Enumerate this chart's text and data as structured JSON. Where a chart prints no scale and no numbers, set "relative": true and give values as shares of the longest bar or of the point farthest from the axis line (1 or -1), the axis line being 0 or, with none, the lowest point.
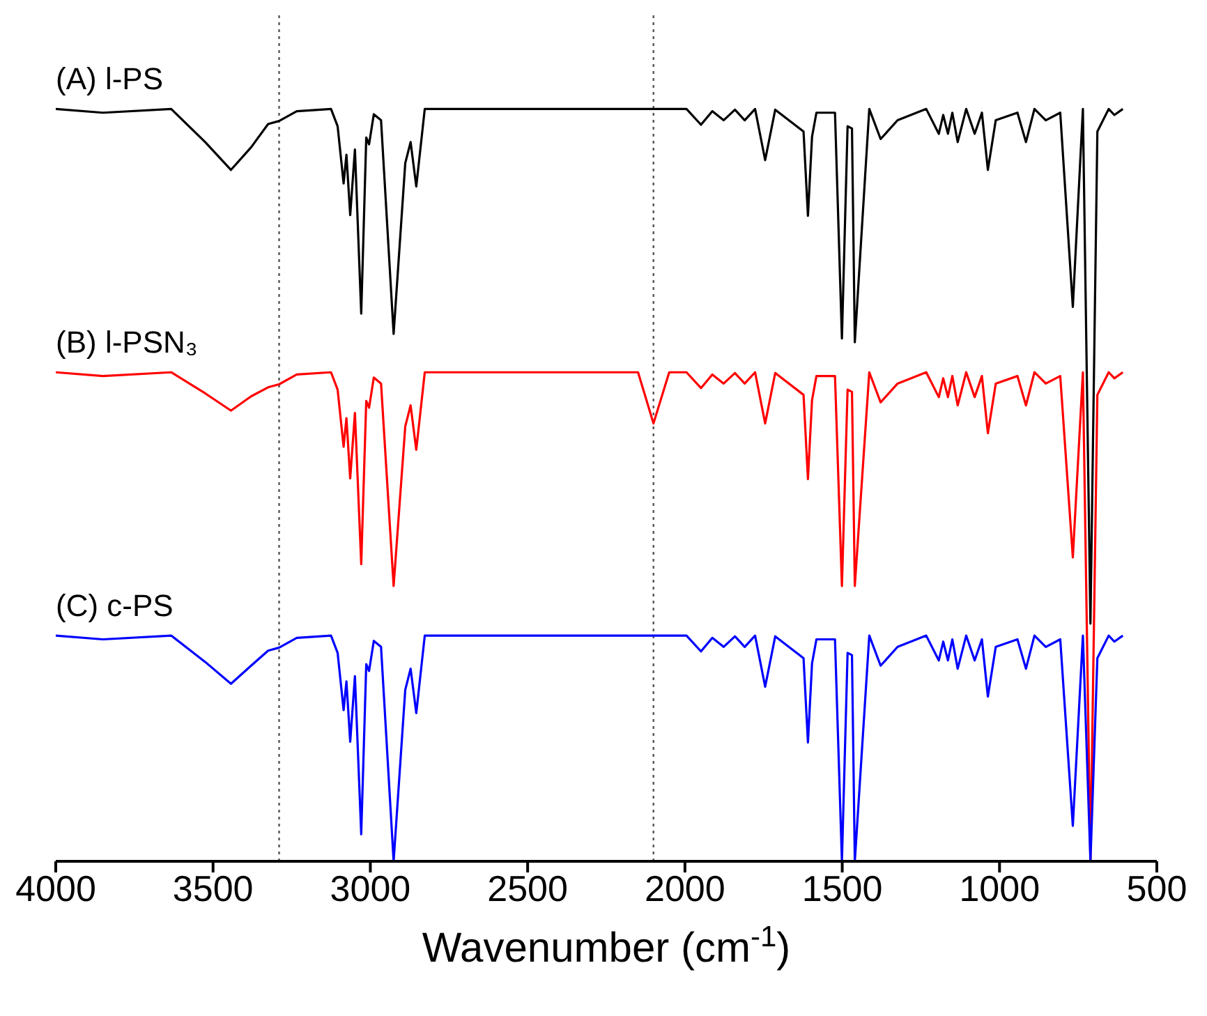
{
  "chart_data": {
    "type": "line",
    "relative": true,
    "xlabel": "Wavenumber (cm$^{-1}$)",
    "xlim": [
      4000,
      500
    ],
    "xticks": [
      4000,
      3500,
      3000,
      2500,
      2000,
      1500,
      1000,
      500
    ],
    "x": [
      4000,
      3850,
      3633,
      3525,
      3443,
      3379,
      3325,
      3290,
      3234,
      3125,
      3104,
      3085,
      3076,
      3064,
      3049,
      3029,
      3013,
      3004,
      2989,
      2966,
      2926,
      2889,
      2872,
      2854,
      2827,
      2149,
      2100,
      2050,
      1995,
      1949,
      1913,
      1877,
      1841,
      1810,
      1777,
      1745,
      1713,
      1623,
      1609,
      1596,
      1582,
      1523,
      1501,
      1483,
      1469,
      1460,
      1414,
      1378,
      1324,
      1233,
      1193,
      1179,
      1164,
      1150,
      1133,
      1106,
      1079,
      1056,
      1037,
      1012,
      943,
      916,
      889,
      853,
      807,
      767,
      735,
      711,
      689,
      653,
      635,
      608
    ],
    "series": [
      {
        "name": "(A) l-PS",
        "color": "#000000",
        "values": [
          1,
          0.995,
          1,
          0.956,
          0.919,
          0.949,
          0.98,
          0.984,
          0.997,
          1,
          0.977,
          0.901,
          0.939,
          0.859,
          0.946,
          0.728,
          0.962,
          0.953,
          0.993,
          0.985,
          0.701,
          0.928,
          0.956,
          0.897,
          1,
          1,
          1,
          1,
          1,
          0.979,
          0.997,
          0.985,
          0.999,
          0.985,
          1,
          0.932,
          0.999,
          0.97,
          0.858,
          0.963,
          0.995,
          0.995,
          0.695,
          0.977,
          0.974,
          0.69,
          1,
          0.96,
          0.985,
          1,
          0.967,
          0.992,
          0.967,
          0.995,
          0.956,
          1,
          0.967,
          0.995,
          0.919,
          0.985,
          0.995,
          0.956,
          1,
          0.985,
          0.995,
          0.737,
          1,
          0.316,
          0.97,
          1,
          0.992,
          1
        ]
      },
      {
        "name": "(B) l-PSN₃",
        "color": "#ff0000",
        "values": [
          0.65,
          0.645,
          0.65,
          0.622,
          0.599,
          0.618,
          0.63,
          0.634,
          0.647,
          0.65,
          0.627,
          0.551,
          0.589,
          0.509,
          0.596,
          0.395,
          0.612,
          0.603,
          0.643,
          0.635,
          0.366,
          0.578,
          0.606,
          0.547,
          0.65,
          0.65,
          0.582,
          0.65,
          0.65,
          0.629,
          0.647,
          0.635,
          0.649,
          0.635,
          0.65,
          0.582,
          0.649,
          0.62,
          0.508,
          0.613,
          0.645,
          0.645,
          0.366,
          0.627,
          0.624,
          0.366,
          0.65,
          0.61,
          0.635,
          0.65,
          0.617,
          0.642,
          0.617,
          0.645,
          0.606,
          0.65,
          0.617,
          0.645,
          0.569,
          0.635,
          0.645,
          0.606,
          0.65,
          0.635,
          0.645,
          0.404,
          0.65,
          0,
          0.62,
          0.65,
          0.642,
          0.65
        ]
      },
      {
        "name": "(C) c-PS",
        "color": "#0000ff",
        "values": [
          0.3,
          0.295,
          0.3,
          0.265,
          0.236,
          0.26,
          0.28,
          0.284,
          0.297,
          0.3,
          0.277,
          0.201,
          0.239,
          0.159,
          0.246,
          0.036,
          0.262,
          0.253,
          0.293,
          0.285,
          0,
          0.228,
          0.256,
          0.197,
          0.3,
          0.3,
          0.3,
          0.3,
          0.3,
          0.279,
          0.297,
          0.285,
          0.299,
          0.285,
          0.3,
          0.232,
          0.299,
          0.27,
          0.158,
          0.263,
          0.295,
          0.295,
          0,
          0.277,
          0.274,
          0,
          0.3,
          0.26,
          0.285,
          0.3,
          0.267,
          0.292,
          0.267,
          0.295,
          0.256,
          0.3,
          0.267,
          0.295,
          0.219,
          0.285,
          0.295,
          0.256,
          0.3,
          0.285,
          0.295,
          0.047,
          0.3,
          0,
          0.27,
          0.3,
          0.292,
          0.3
        ]
      }
    ],
    "ref_lines": [
      {
        "axis": "x",
        "value": 3290,
        "color": "#555555",
        "line_style": "dotted"
      },
      {
        "axis": "x",
        "value": 2100,
        "color": "#555555",
        "line_style": "dotted"
      }
    ]
  }
}
